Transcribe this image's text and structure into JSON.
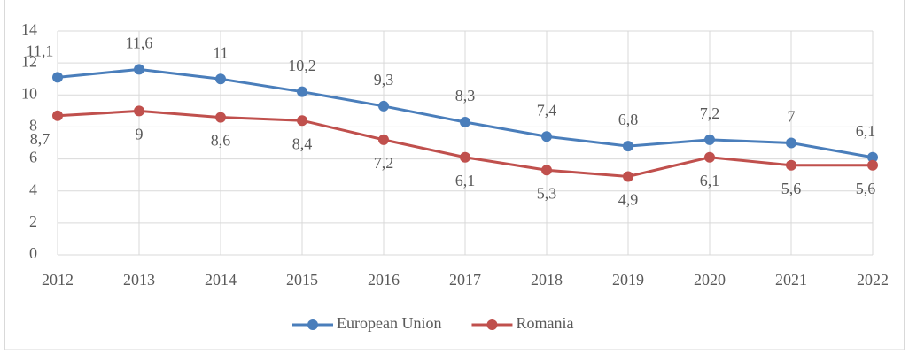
{
  "chart_data": {
    "type": "line",
    "categories": [
      "2012",
      "2013",
      "2014",
      "2015",
      "2016",
      "2017",
      "2018",
      "2019",
      "2020",
      "2021",
      "2022"
    ],
    "series": [
      {
        "name": "European Union",
        "color": "#4a7ebb",
        "values": [
          11.1,
          11.6,
          11,
          10.2,
          9.3,
          8.3,
          7.4,
          6.8,
          7.2,
          7,
          6.1
        ],
        "value_labels": [
          "11,1",
          "11,6",
          "11",
          "10,2",
          "9,3",
          "8,3",
          "7,4",
          "6,8",
          "7,2",
          "7",
          "6,1"
        ]
      },
      {
        "name": "Romania",
        "color": "#c0504d",
        "values": [
          8.7,
          9,
          8.6,
          8.4,
          7.2,
          6.1,
          5.3,
          4.9,
          6.1,
          5.6,
          5.6
        ],
        "value_labels": [
          "8,7",
          "9",
          "8,6",
          "8,4",
          "7,2",
          "6,1",
          "5,3",
          "4,9",
          "6,1",
          "5,6",
          "5,6"
        ]
      }
    ],
    "ylim": [
      0,
      14
    ],
    "yticks": [
      0,
      2,
      4,
      6,
      8,
      10,
      12,
      14
    ],
    "grid": true,
    "legend": "bottom"
  }
}
